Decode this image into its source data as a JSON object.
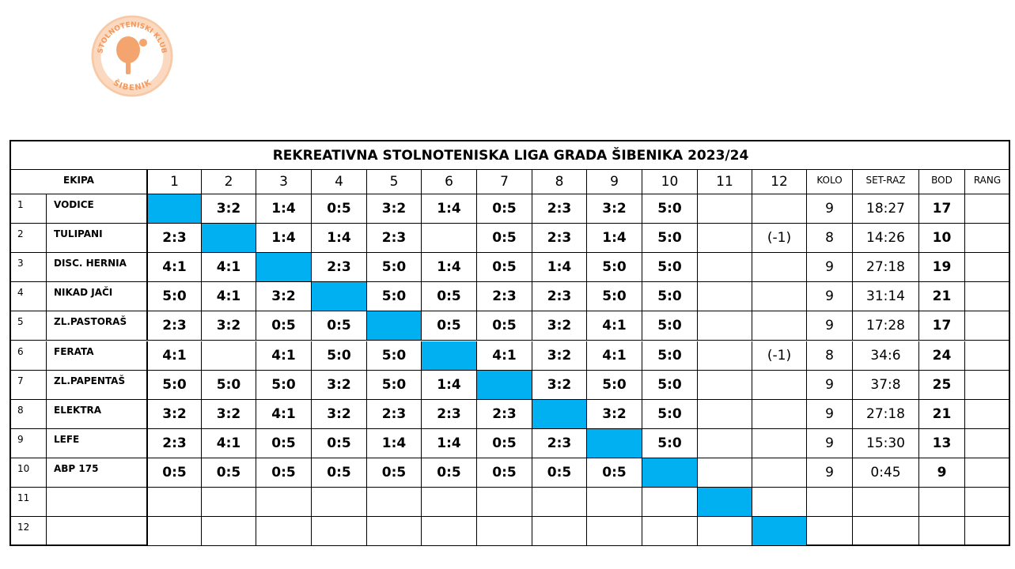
{
  "logo": {
    "top_text": "STOLNOTENISKI KLUB",
    "bottom_text": "ŠIBENIK"
  },
  "table": {
    "title": "REKREATIVNA STOLNOTENISKA LIGA GRADA ŠIBENIKA 2023/24",
    "header": [
      "EKIPA",
      "1",
      "2",
      "3",
      "4",
      "5",
      "6",
      "7",
      "8",
      "9",
      "10",
      "11",
      "12",
      "KOLO",
      "SET-RAZ",
      "BOD",
      "RANG"
    ],
    "rows": [
      {
        "no": 1,
        "team": "VODICE",
        "results": [
          null,
          "3:2",
          "1:4",
          "0:5",
          "3:2",
          "1:4",
          "0:5",
          "2:3",
          "3:2",
          "5:0",
          null,
          null
        ],
        "kolo": 9,
        "set_raz": "18:27",
        "bod": 17
      },
      {
        "no": 2,
        "team": "TULIPANI",
        "results": [
          "2:3",
          null,
          "1:4",
          "1:4",
          "2:3",
          null,
          "0:5",
          "2:3",
          "1:4",
          "5:0",
          null,
          "(-1)"
        ],
        "kolo": 8,
        "set_raz": "14:26",
        "bod": 10
      },
      {
        "no": 3,
        "team": "DISC. HERNIA",
        "results": [
          "4:1",
          "4:1",
          null,
          "2:3",
          "5:0",
          "1:4",
          "0:5",
          "1:4",
          "5:0",
          "5:0",
          null,
          null
        ],
        "kolo": 9,
        "set_raz": "27:18",
        "bod": 19
      },
      {
        "no": 4,
        "team": "NIKAD JAČI",
        "results": [
          "5:0",
          "4:1",
          "3:2",
          null,
          "5:0",
          "0:5",
          "2:3",
          "2:3",
          "5:0",
          "5:0",
          null,
          null
        ],
        "kolo": 9,
        "set_raz": "31:14",
        "bod": 21
      },
      {
        "no": 5,
        "team": "ZL.PASTORAŠ",
        "results": [
          "2:3",
          "3:2",
          "0:5",
          "0:5",
          null,
          "0:5",
          "0:5",
          "3:2",
          "4:1",
          "5:0",
          null,
          null
        ],
        "kolo": 9,
        "set_raz": "17:28",
        "bod": 17
      },
      {
        "no": 6,
        "team": "FERATA",
        "results": [
          "4:1",
          null,
          "4:1",
          "5:0",
          "5:0",
          null,
          "4:1",
          "3:2",
          "4:1",
          "5:0",
          null,
          "(-1)"
        ],
        "kolo": 8,
        "set_raz": "34:6",
        "bod": 24
      },
      {
        "no": 7,
        "team": "ZL.PAPENTAŠ",
        "results": [
          "5:0",
          "5:0",
          "5:0",
          "3:2",
          "5:0",
          "1:4",
          null,
          "3:2",
          "5:0",
          "5:0",
          null,
          null
        ],
        "kolo": 9,
        "set_raz": "37:8",
        "bod": 25
      },
      {
        "no": 8,
        "team": "ELEKTRA",
        "results": [
          "3:2",
          "3:2",
          "4:1",
          "3:2",
          "2:3",
          "2:3",
          "2:3",
          null,
          "3:2",
          "5:0",
          null,
          null
        ],
        "kolo": 9,
        "set_raz": "27:18",
        "bod": 21
      },
      {
        "no": 9,
        "team": "LEFE",
        "results": [
          "2:3",
          "4:1",
          "0:5",
          "0:5",
          "1:4",
          "1:4",
          "0:5",
          "2:3",
          null,
          "5:0",
          null,
          null
        ],
        "kolo": 9,
        "set_raz": "15:30",
        "bod": 13
      },
      {
        "no": 10,
        "team": "ABP 175",
        "results": [
          "0:5",
          "0:5",
          "0:5",
          "0:5",
          "0:5",
          "0:5",
          "0:5",
          "0:5",
          "0:5",
          null,
          null,
          null
        ],
        "kolo": 9,
        "set_raz": "0:45",
        "bod": 9
      },
      {
        "no": 11
      },
      {
        "no": 12
      }
    ]
  }
}
